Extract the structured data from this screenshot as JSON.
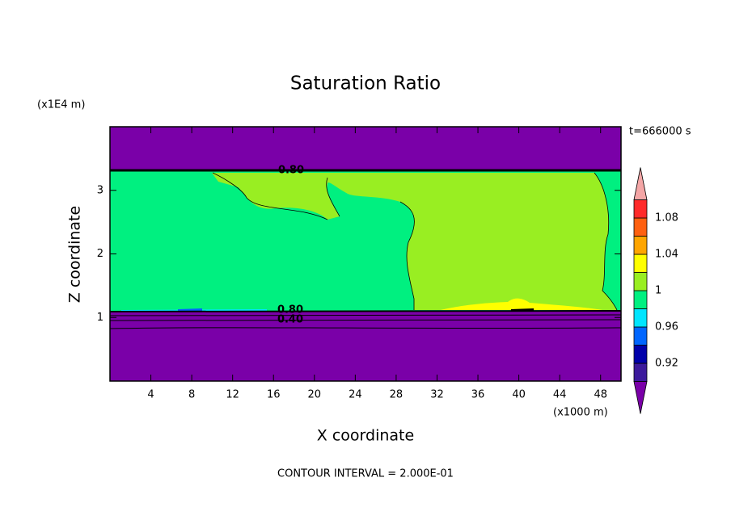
{
  "chart_data": {
    "type": "contour",
    "title": "Saturation Ratio",
    "xlabel": "X coordinate",
    "ylabel": "Z coordinate",
    "x_unit_label": "(x1000 m)",
    "y_unit_label": "(x1E4 m)",
    "time_label": "t=666000 s",
    "footer": "CONTOUR INTERVAL = 2.000E-01",
    "contour_labels": [
      "0.80",
      "0.80",
      "0.40"
    ],
    "xlim": [
      0,
      50
    ],
    "xticks": [
      4,
      8,
      12,
      16,
      20,
      24,
      28,
      32,
      36,
      40,
      44,
      48
    ],
    "ylim": [
      0,
      4
    ],
    "yticks": [
      1,
      2,
      3
    ],
    "colorbar": {
      "levels": [
        0.9,
        0.92,
        0.94,
        0.96,
        0.98,
        1,
        1.02,
        1.04,
        1.06,
        1.08,
        1.1
      ],
      "colors": [
        "#7a00a8",
        "#3c1a9c",
        "#0000aa",
        "#0066ff",
        "#00e5ff",
        "#00f080",
        "#99ee22",
        "#ffff00",
        "#ffa500",
        "#ff6010",
        "#ff2a2a",
        "#f4a6a6"
      ],
      "ticks": [
        0.92,
        0.96,
        1,
        1.04,
        1.08
      ]
    }
  }
}
